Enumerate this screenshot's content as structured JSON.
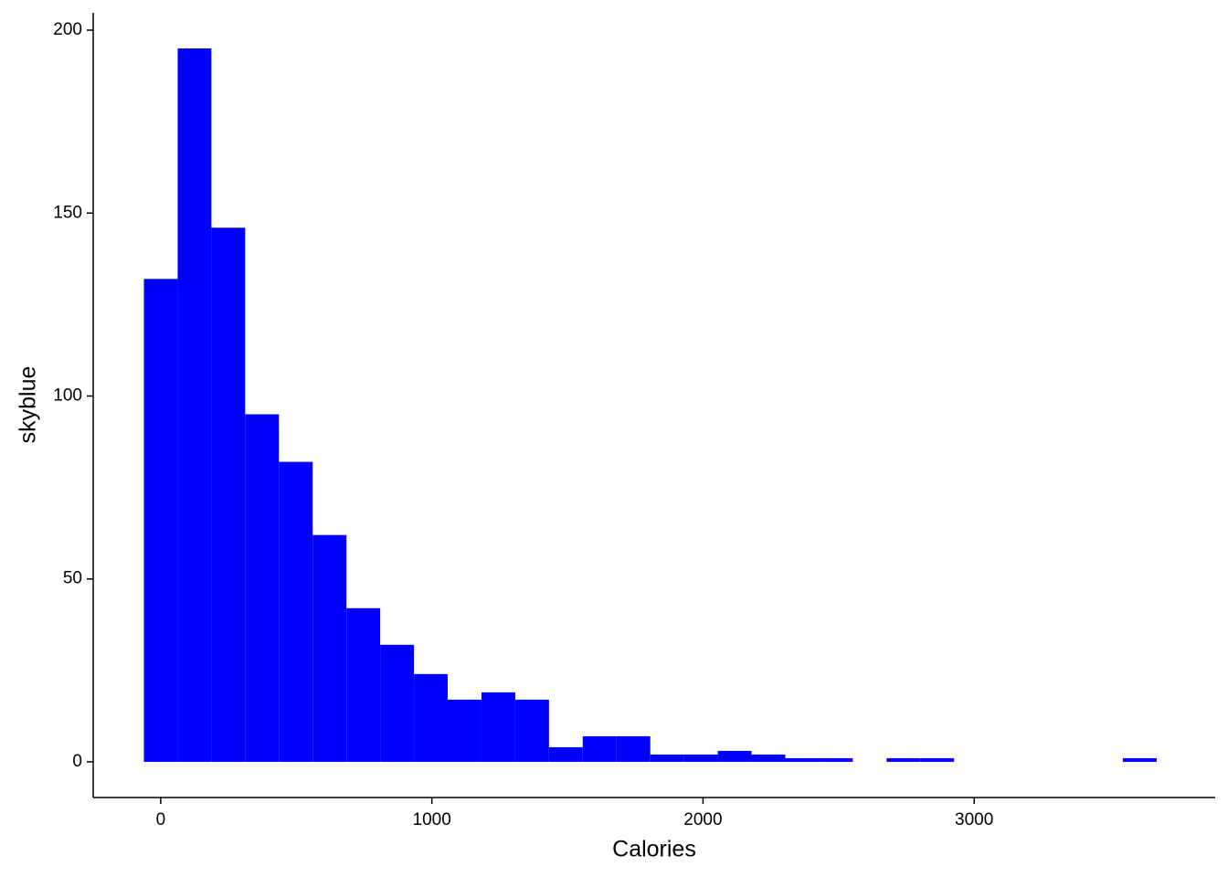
{
  "chart_data": {
    "type": "histogram",
    "x_label": "Calories",
    "y_label": "skyblue",
    "color": "#0000ff",
    "bins": [
      -62,
      62.5,
      187,
      311.5,
      436,
      560.5,
      685,
      809.5,
      934,
      1058.5,
      1183,
      1307.5,
      1432,
      1556.5,
      1681,
      1805.5,
      1930,
      2054.5,
      2179,
      2303.5,
      2428,
      2552.5,
      2677,
      2801.5,
      2926,
      3050.5,
      3175,
      3299.5,
      3424,
      3548.5,
      3673
    ],
    "counts": [
      132,
      195,
      146,
      95,
      82,
      62,
      42,
      32,
      24,
      17,
      19,
      17,
      4,
      7,
      7,
      2,
      2,
      3,
      2,
      1,
      1,
      0,
      1,
      1,
      0,
      0,
      0,
      0,
      0,
      1
    ],
    "xlim": [
      -249,
      3889
    ],
    "xticks": [
      0,
      1000,
      2000,
      3000
    ],
    "ylim": [
      -9.75,
      204.75
    ],
    "yticks": [
      0,
      50,
      100,
      150,
      200
    ]
  }
}
